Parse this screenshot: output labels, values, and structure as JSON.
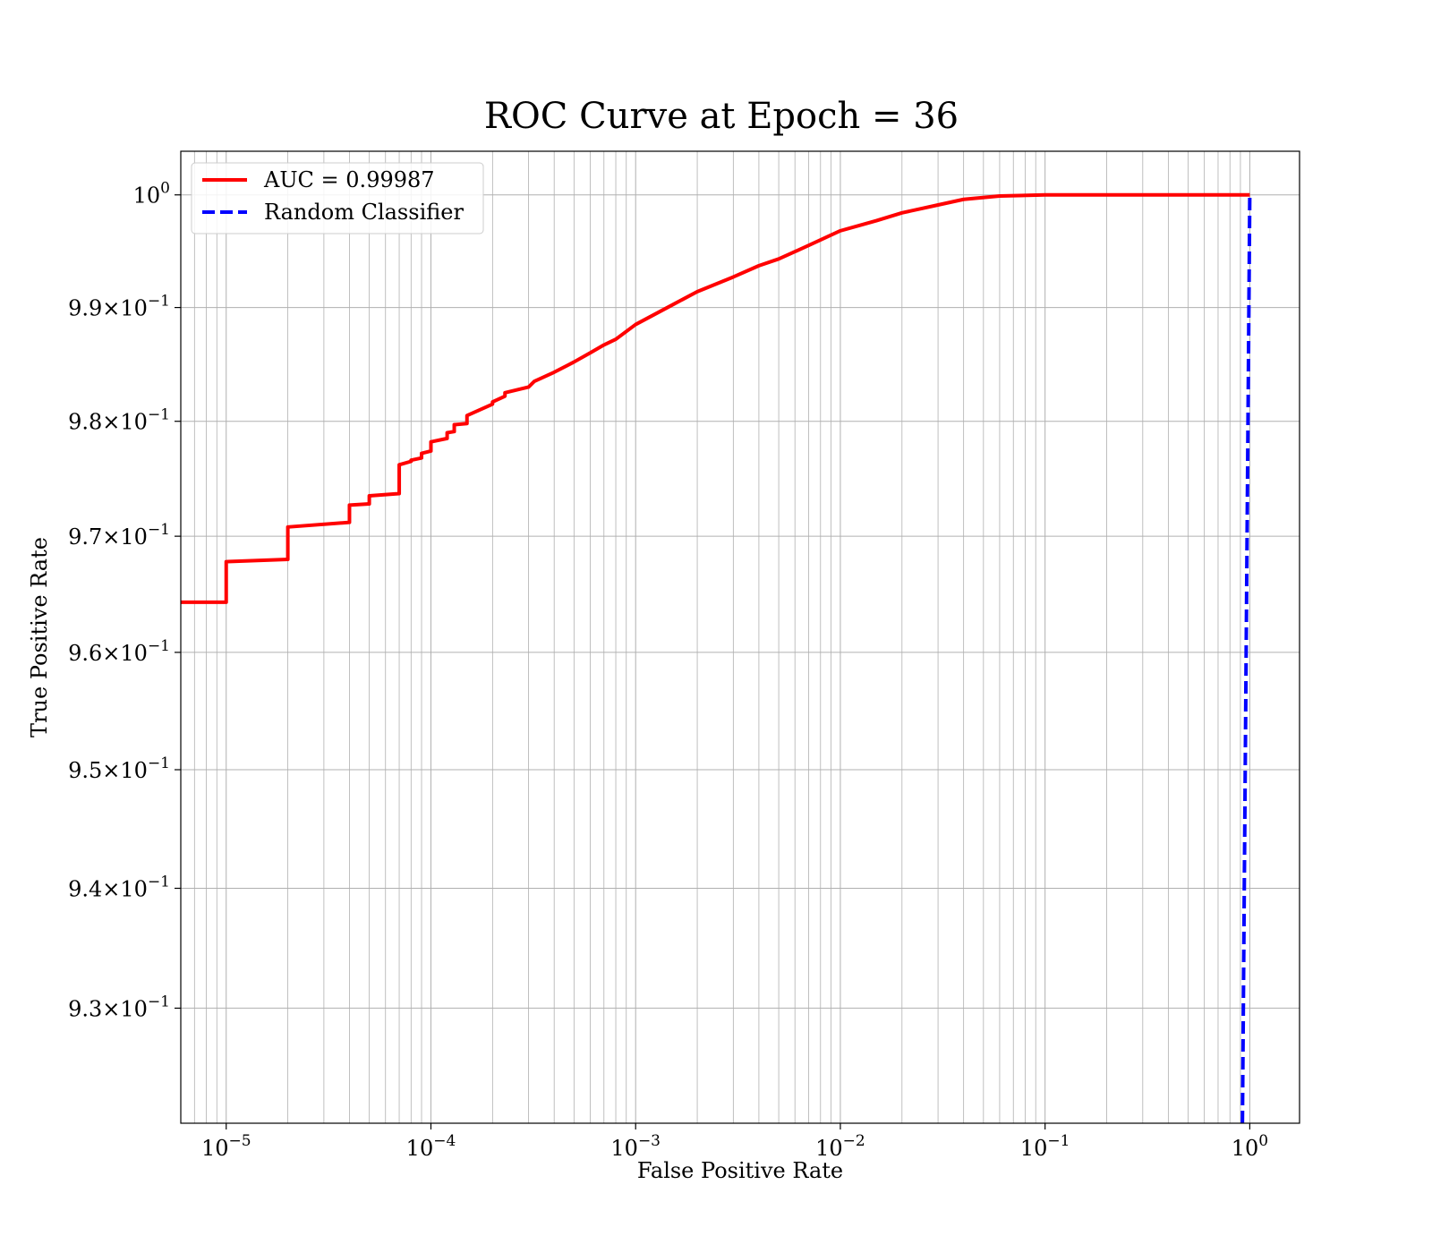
{
  "chart_data": {
    "type": "line",
    "title": "ROC Curve at Epoch = 36",
    "xlabel": "False Positive Rate",
    "ylabel": "True Positive Rate",
    "xscale": "log",
    "yscale": "log",
    "xlim": [
      6e-06,
      1.75
    ],
    "ylim": [
      0.9205,
      1.0039
    ],
    "x_ticks": [
      {
        "value": 1e-05,
        "base": "10",
        "exp": "−5"
      },
      {
        "value": 0.0001,
        "base": "10",
        "exp": "−4"
      },
      {
        "value": 0.001,
        "base": "10",
        "exp": "−3"
      },
      {
        "value": 0.01,
        "base": "10",
        "exp": "−2"
      },
      {
        "value": 0.1,
        "base": "10",
        "exp": "−1"
      },
      {
        "value": 1,
        "base": "10",
        "exp": "0"
      }
    ],
    "y_ticks": [
      {
        "value": 0.93,
        "base": "9.3×10",
        "exp": "−1"
      },
      {
        "value": 0.94,
        "base": "9.4×10",
        "exp": "−1"
      },
      {
        "value": 0.95,
        "base": "9.5×10",
        "exp": "−1"
      },
      {
        "value": 0.96,
        "base": "9.6×10",
        "exp": "−1"
      },
      {
        "value": 0.97,
        "base": "9.7×10",
        "exp": "−1"
      },
      {
        "value": 0.98,
        "base": "9.8×10",
        "exp": "−1"
      },
      {
        "value": 0.99,
        "base": "9.9×10",
        "exp": "−1"
      },
      {
        "value": 1.0,
        "base": "10",
        "exp": "0"
      }
    ],
    "grid": true,
    "grid_minor": true,
    "legend_position": "top-left",
    "series": [
      {
        "name": "AUC = 0.99987",
        "color": "#ff0000",
        "style": "solid",
        "x": [
          6e-06,
          1e-05,
          1e-05,
          2e-05,
          2e-05,
          4e-05,
          4e-05,
          5e-05,
          5e-05,
          7e-05,
          7e-05,
          8e-05,
          8e-05,
          9e-05,
          9e-05,
          0.0001,
          0.0001,
          0.00012,
          0.00012,
          0.00013,
          0.00013,
          0.00015,
          0.00015,
          0.0002,
          0.0002,
          0.00023,
          0.00023,
          0.0003,
          0.00032,
          0.0004,
          0.0005,
          0.0006,
          0.0007,
          0.0008,
          0.001,
          0.0015,
          0.002,
          0.003,
          0.004,
          0.005,
          0.007,
          0.01,
          0.015,
          0.02,
          0.03,
          0.04,
          0.06,
          0.1,
          1.0
        ],
        "y": [
          0.9643,
          0.9643,
          0.9678,
          0.968,
          0.9708,
          0.9712,
          0.9727,
          0.9728,
          0.9735,
          0.9737,
          0.9762,
          0.9765,
          0.9766,
          0.9768,
          0.9772,
          0.9774,
          0.9782,
          0.9785,
          0.979,
          0.9791,
          0.9797,
          0.9798,
          0.9805,
          0.9815,
          0.9817,
          0.9822,
          0.9825,
          0.983,
          0.9835,
          0.9843,
          0.9852,
          0.986,
          0.9867,
          0.9872,
          0.9885,
          0.9902,
          0.9914,
          0.9927,
          0.9937,
          0.9943,
          0.9955,
          0.9968,
          0.9977,
          0.9984,
          0.9991,
          0.9996,
          0.9999,
          1.0,
          1.0
        ]
      },
      {
        "name": "Random Classifier",
        "color": "#0000ff",
        "style": "dashed",
        "x": [
          0.9205,
          1.0
        ],
        "y": [
          0.9205,
          1.0
        ]
      }
    ]
  }
}
